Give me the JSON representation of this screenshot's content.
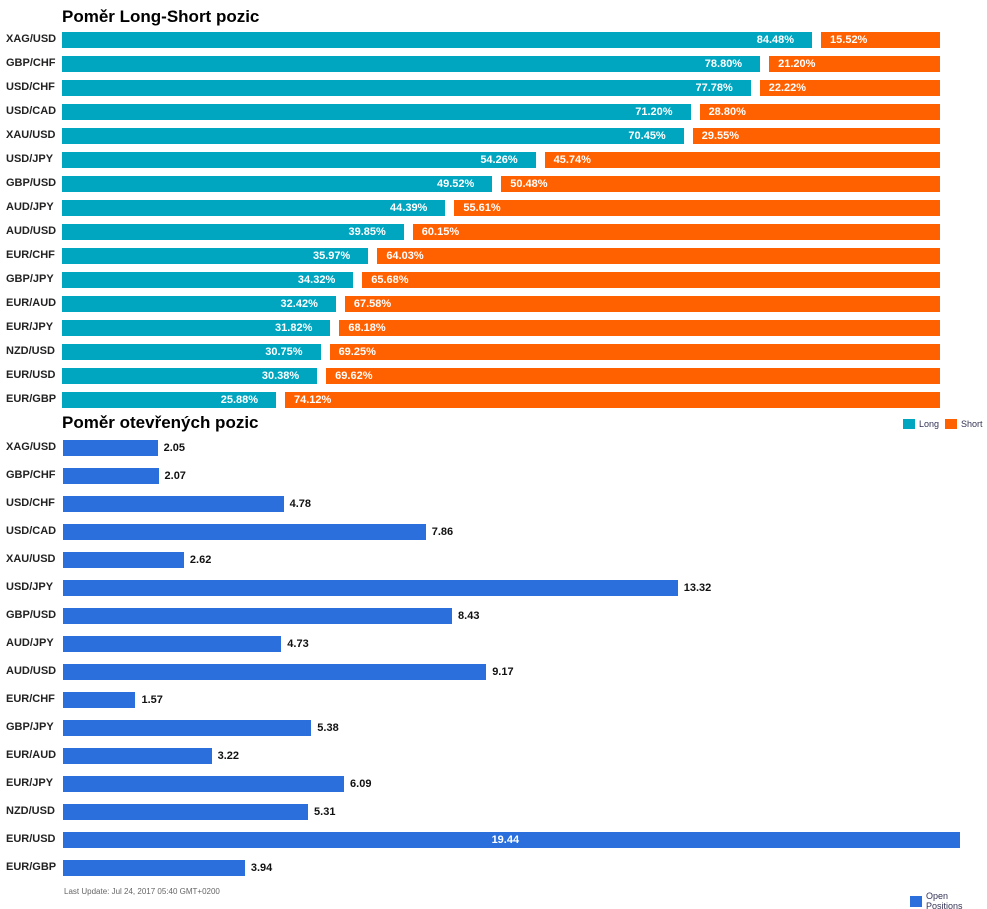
{
  "chart_data": [
    {
      "type": "bar",
      "orientation": "horizontal",
      "stacked": true,
      "title": "Poměr Long-Short pozic",
      "categories": [
        "XAG/USD",
        "GBP/CHF",
        "USD/CHF",
        "USD/CAD",
        "XAU/USD",
        "USD/JPY",
        "GBP/USD",
        "AUD/JPY",
        "AUD/USD",
        "EUR/CHF",
        "GBP/JPY",
        "EUR/AUD",
        "EUR/JPY",
        "NZD/USD",
        "EUR/USD",
        "EUR/GBP"
      ],
      "series": [
        {
          "name": "Long",
          "color": "#00a5bf",
          "values": [
            84.48,
            78.8,
            77.78,
            71.2,
            70.45,
            54.26,
            49.52,
            44.39,
            39.85,
            35.97,
            34.32,
            32.42,
            31.82,
            30.75,
            30.38,
            25.88
          ]
        },
        {
          "name": "Short",
          "color": "#ff6000",
          "values": [
            15.52,
            21.2,
            22.22,
            28.8,
            29.55,
            45.74,
            50.48,
            55.61,
            60.15,
            64.03,
            65.68,
            67.58,
            68.18,
            69.25,
            69.62,
            74.12
          ]
        }
      ],
      "unit": "%",
      "legend": "bottom-right"
    },
    {
      "type": "bar",
      "orientation": "horizontal",
      "title": "Poměr otevřených pozic",
      "categories": [
        "XAG/USD",
        "GBP/CHF",
        "USD/CHF",
        "USD/CAD",
        "XAU/USD",
        "USD/JPY",
        "GBP/USD",
        "AUD/JPY",
        "AUD/USD",
        "EUR/CHF",
        "GBP/JPY",
        "EUR/AUD",
        "EUR/JPY",
        "NZD/USD",
        "EUR/USD",
        "EUR/GBP"
      ],
      "series": [
        {
          "name": "Open Positions",
          "color": "#2a6fdb",
          "values": [
            2.05,
            2.07,
            4.78,
            7.86,
            2.62,
            13.32,
            8.43,
            4.73,
            9.17,
            1.57,
            5.38,
            3.22,
            6.09,
            5.31,
            19.44,
            3.94
          ]
        }
      ],
      "legend": "bottom-right"
    }
  ],
  "footer": {
    "last_update": "Last Update: Jul 24, 2017 05:40 GMT+0200"
  }
}
